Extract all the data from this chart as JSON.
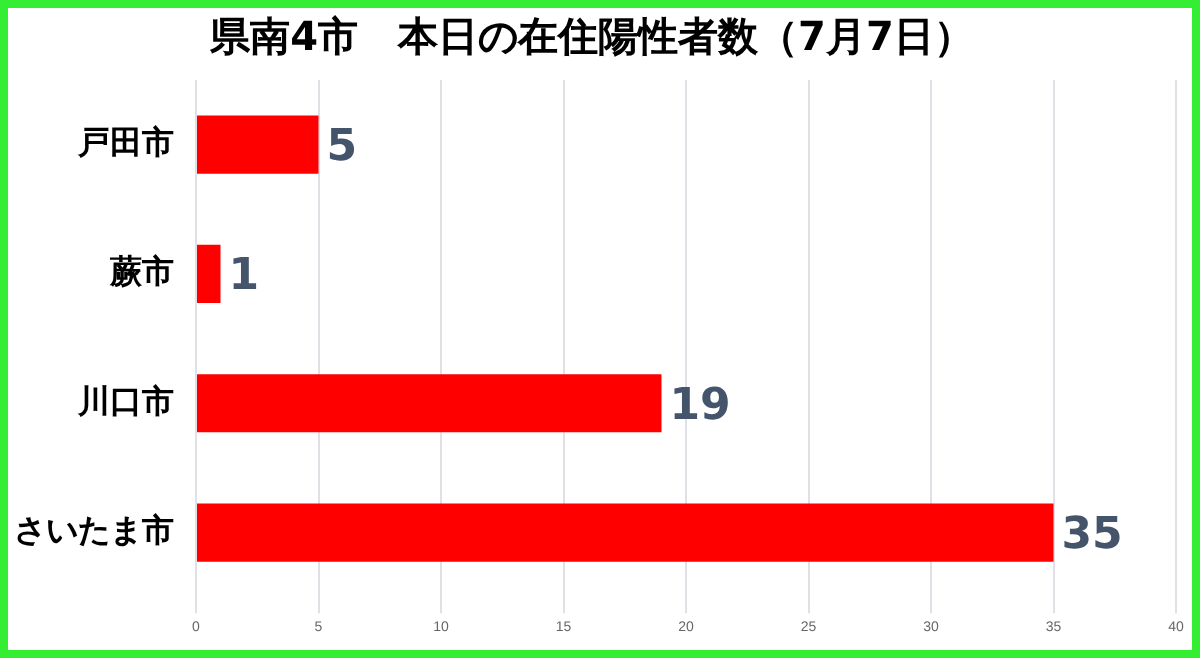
{
  "chart_data": {
    "type": "bar",
    "orientation": "horizontal",
    "title": "県南4市　本日の在住陽性者数（7月7日）",
    "categories": [
      "戸田市",
      "蕨市",
      "川口市",
      "さいたま市"
    ],
    "values": [
      5,
      1,
      19,
      35
    ],
    "color": "#ff0000",
    "xlim": [
      0,
      40
    ],
    "xticks": [
      0,
      5,
      10,
      15,
      20,
      25,
      30,
      35,
      40
    ],
    "grid": "x",
    "data_labels": true
  }
}
